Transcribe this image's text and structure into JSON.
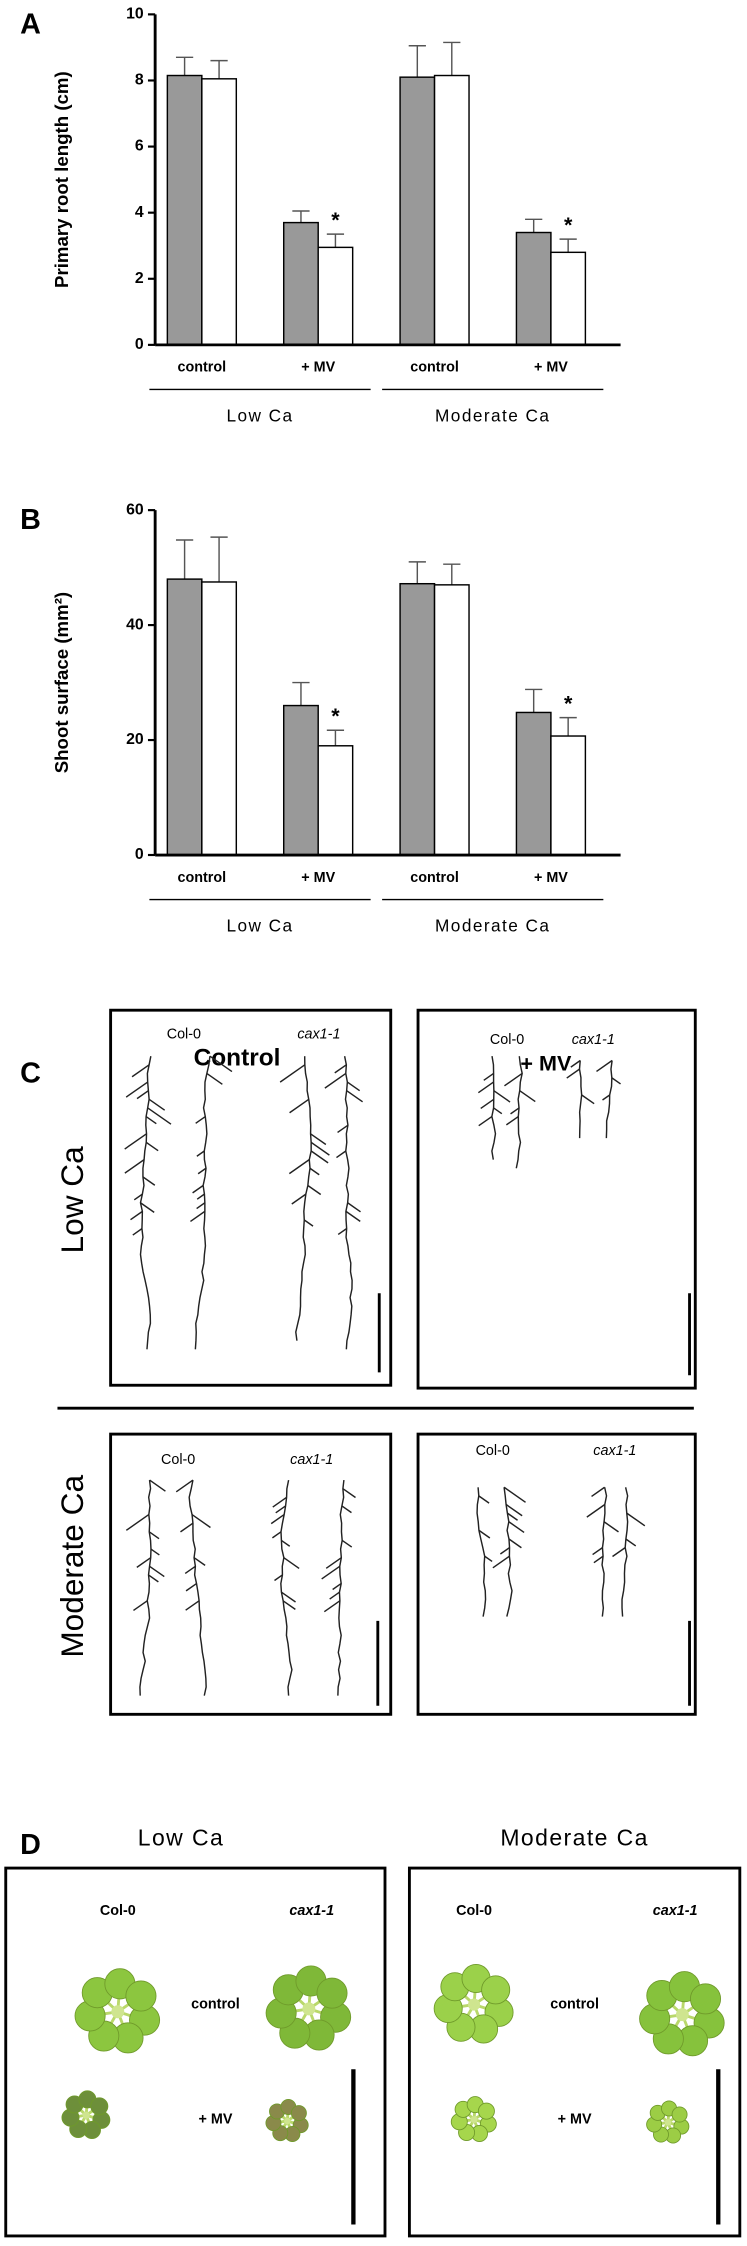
{
  "chart_data": [
    {
      "panel": "A",
      "type": "bar",
      "ylabel": "Primary root length (cm)",
      "categories": [
        "control",
        "+ MV",
        "control",
        "+ MV"
      ],
      "groups": [
        "Low Ca",
        "Moderate Ca"
      ],
      "series": [
        {
          "color": "#999999",
          "values": [
            8.15,
            3.7,
            8.1,
            3.4
          ],
          "errors": [
            0.55,
            0.35,
            0.95,
            0.4
          ]
        },
        {
          "color": "#ffffff",
          "values": [
            8.05,
            2.95,
            8.15,
            2.8
          ],
          "errors": [
            0.55,
            0.4,
            1.0,
            0.4
          ],
          "significance": [
            null,
            "*",
            null,
            "*"
          ]
        }
      ],
      "ylim": [
        0,
        10
      ],
      "yticks": [
        0,
        2,
        4,
        6,
        8,
        10
      ]
    },
    {
      "panel": "B",
      "type": "bar",
      "ylabel": "Shoot surface (mm²)",
      "categories": [
        "control",
        "+ MV",
        "control",
        "+ MV"
      ],
      "groups": [
        "Low Ca",
        "Moderate Ca"
      ],
      "series": [
        {
          "color": "#999999",
          "values": [
            48,
            26,
            47.2,
            24.8
          ],
          "errors": [
            6.8,
            4,
            3.8,
            4
          ]
        },
        {
          "color": "#ffffff",
          "values": [
            47.5,
            19,
            47,
            20.7
          ],
          "errors": [
            7.8,
            2.7,
            3.6,
            3.2
          ],
          "significance": [
            null,
            "*",
            null,
            "*"
          ]
        }
      ],
      "ylim": [
        0,
        60
      ],
      "yticks": [
        0,
        20,
        40,
        60
      ]
    }
  ],
  "panel_c": {
    "label": "C",
    "columns": [
      "Control",
      "+ MV"
    ],
    "rows": [
      "Low Ca",
      "Moderate Ca"
    ],
    "genotypes": [
      "Col-0",
      "cax1-1"
    ]
  },
  "panel_d": {
    "label": "D",
    "columns": [
      "Low Ca",
      "Moderate Ca"
    ],
    "genotypes": [
      "Col-0",
      "cax1-1"
    ],
    "treatments": [
      "control",
      "+ MV"
    ]
  }
}
